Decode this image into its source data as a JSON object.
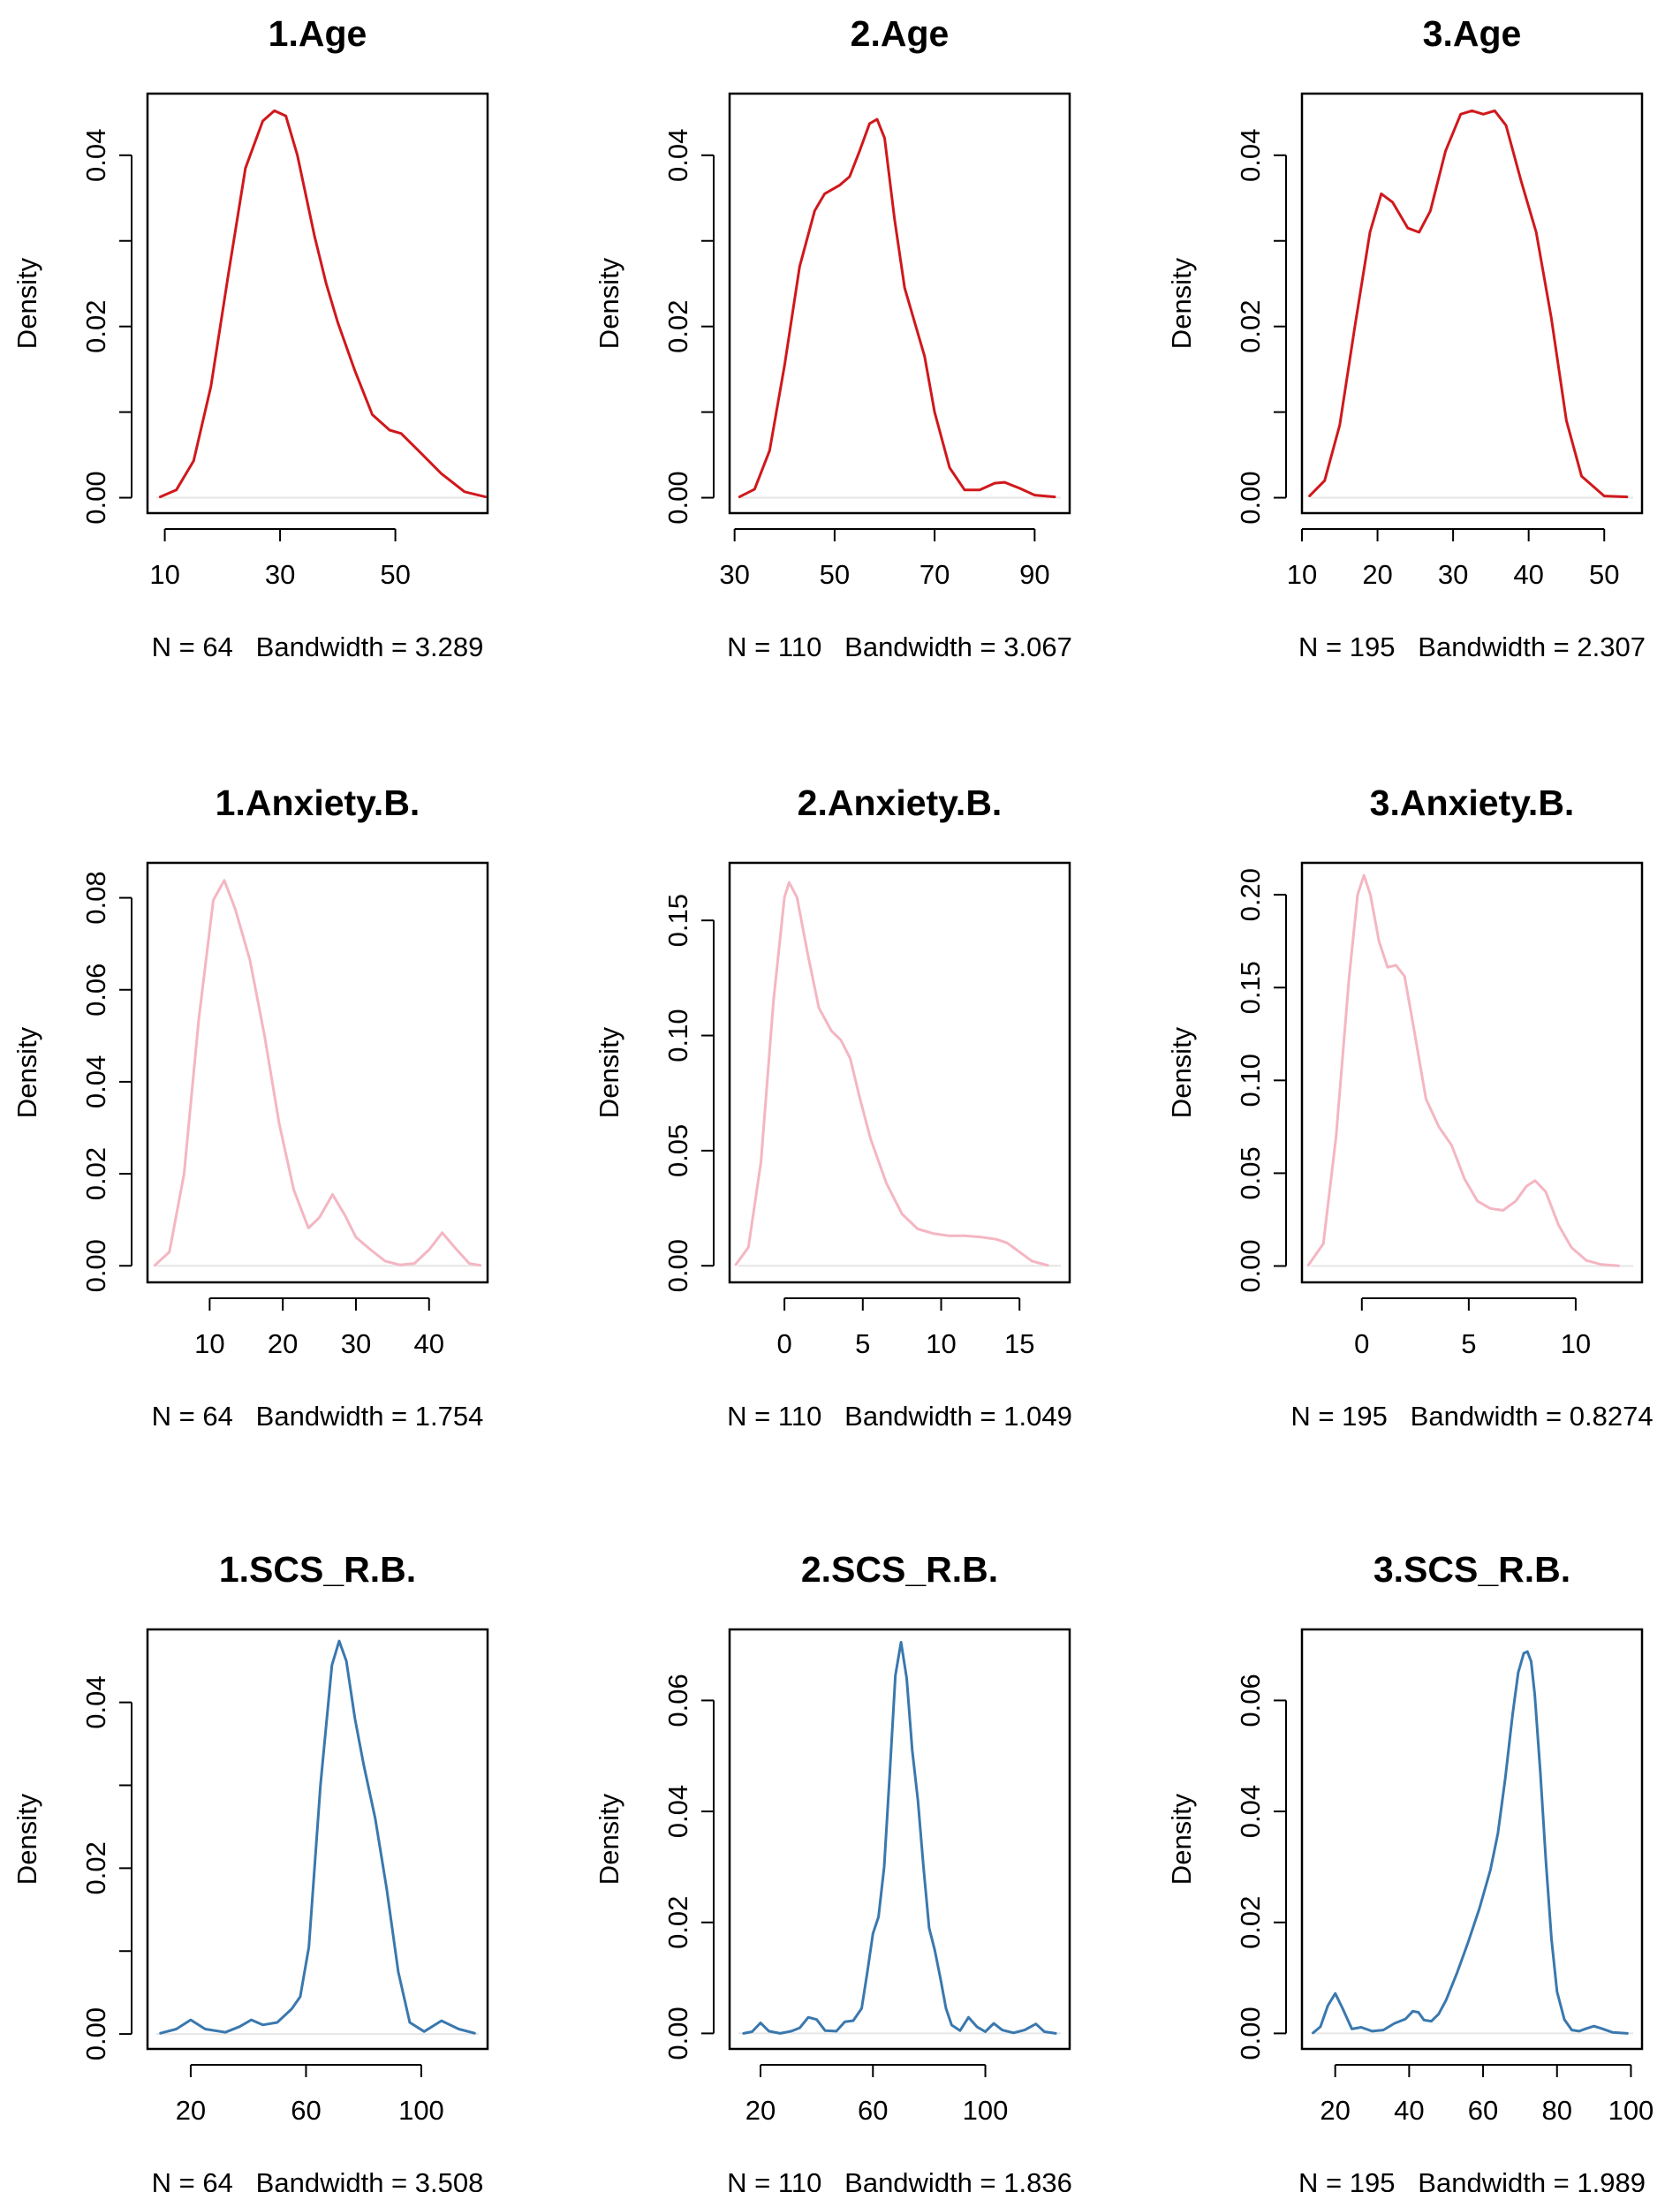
{
  "figure": {
    "ylabel": "Density",
    "colors": {
      "age": "#d0181c",
      "anxiety": "#f4b6c2",
      "scs": "#3a78ae",
      "axis": "#000000",
      "baseline": "#e6e6e6"
    }
  },
  "chart_data": [
    {
      "type": "line",
      "title": "1.Age",
      "xlabel": "N = 64   Bandwidth = 3.289",
      "ylabel": "Density",
      "color": "#d0181c",
      "xlim": [
        7,
        66
      ],
      "ylim": [
        -0.0018,
        0.0472
      ],
      "xticks": [
        10,
        30,
        50
      ],
      "xtick_labels": [
        "10",
        "30",
        "50"
      ],
      "yticks": [
        0,
        0.01,
        0.02,
        0.03,
        0.04
      ],
      "ytick_labels": [
        "0.00",
        "",
        "0.02",
        "",
        "0.04"
      ],
      "x": [
        9.2,
        12,
        15,
        18,
        21,
        24,
        27,
        29,
        31,
        33,
        36,
        38,
        40,
        43,
        46,
        49,
        51,
        54,
        58,
        62,
        65.6
      ],
      "y": [
        0.0001,
        0.0009,
        0.0043,
        0.013,
        0.026,
        0.0385,
        0.044,
        0.0452,
        0.0446,
        0.04,
        0.0305,
        0.025,
        0.0205,
        0.0148,
        0.0097,
        0.0079,
        0.0075,
        0.0055,
        0.0028,
        0.0007,
        0.0001
      ]
    },
    {
      "type": "line",
      "title": "2.Age",
      "xlabel": "N = 110   Bandwidth = 3.067",
      "ylabel": "Density",
      "color": "#d0181c",
      "xlim": [
        29,
        97
      ],
      "ylim": [
        -0.0018,
        0.0472
      ],
      "xticks": [
        30,
        50,
        70,
        90
      ],
      "xtick_labels": [
        "30",
        "50",
        "70",
        "90"
      ],
      "yticks": [
        0,
        0.01,
        0.02,
        0.03,
        0.04
      ],
      "ytick_labels": [
        "0.00",
        "",
        "0.02",
        "",
        "0.04"
      ],
      "x": [
        31,
        34,
        37,
        40,
        43,
        46,
        48,
        51,
        53,
        55,
        57,
        58.5,
        60,
        62,
        64,
        66,
        68,
        70,
        73,
        76,
        79,
        82,
        84,
        87,
        90,
        94
      ],
      "y": [
        0.0001,
        0.001,
        0.0055,
        0.0155,
        0.027,
        0.0335,
        0.0355,
        0.0365,
        0.0375,
        0.0405,
        0.0437,
        0.0442,
        0.042,
        0.0325,
        0.0245,
        0.0205,
        0.0165,
        0.01,
        0.0035,
        0.0009,
        0.0009,
        0.0017,
        0.0018,
        0.0011,
        0.0003,
        0.0001
      ]
    },
    {
      "type": "line",
      "title": "3.Age",
      "xlabel": "N = 195   Bandwidth = 2.307",
      "ylabel": "Density",
      "color": "#d0181c",
      "xlim": [
        10,
        55
      ],
      "ylim": [
        -0.0018,
        0.0472
      ],
      "xticks": [
        10,
        20,
        30,
        40,
        50
      ],
      "xtick_labels": [
        "10",
        "20",
        "30",
        "40",
        "50"
      ],
      "yticks": [
        0,
        0.01,
        0.02,
        0.03,
        0.04
      ],
      "ytick_labels": [
        "0.00",
        "",
        "0.02",
        "",
        "0.04"
      ],
      "x": [
        11,
        13,
        15,
        17,
        19,
        20.5,
        22,
        24,
        25.5,
        27,
        29,
        31,
        32.5,
        34,
        35.5,
        37,
        39,
        41,
        43,
        45,
        47,
        50,
        53
      ],
      "y": [
        0.0002,
        0.002,
        0.0085,
        0.02,
        0.031,
        0.0355,
        0.0345,
        0.0315,
        0.031,
        0.0335,
        0.0405,
        0.0448,
        0.0452,
        0.0448,
        0.0452,
        0.0435,
        0.037,
        0.031,
        0.021,
        0.009,
        0.0025,
        0.0002,
        0.0001
      ]
    },
    {
      "type": "line",
      "title": "1.Anxiety.B.",
      "xlabel": "N = 64   Bandwidth = 1.754",
      "ylabel": "Density",
      "color": "#f4b6c2",
      "xlim": [
        1.5,
        48
      ],
      "ylim": [
        -0.0036,
        0.0876
      ],
      "xticks": [
        10,
        20,
        30,
        40
      ],
      "xtick_labels": [
        "10",
        "20",
        "30",
        "40"
      ],
      "yticks": [
        0,
        0.02,
        0.04,
        0.06,
        0.08
      ],
      "ytick_labels": [
        "0.00",
        "0.02",
        "0.04",
        "0.06",
        "0.08"
      ],
      "x": [
        2.5,
        4.5,
        6.5,
        8.5,
        10.5,
        12,
        13.5,
        15.5,
        17.5,
        19.5,
        21.5,
        23.5,
        25,
        26.8,
        28.5,
        30,
        32,
        34,
        36,
        38,
        40,
        41.8,
        43.5,
        45.5,
        47
      ],
      "y": [
        0.0001,
        0.003,
        0.02,
        0.0535,
        0.0795,
        0.0838,
        0.0775,
        0.0665,
        0.05,
        0.031,
        0.0165,
        0.0082,
        0.0105,
        0.0155,
        0.011,
        0.0062,
        0.0035,
        0.001,
        0.0002,
        0.0005,
        0.0035,
        0.0072,
        0.004,
        0.0005,
        0.0001
      ]
    },
    {
      "type": "line",
      "title": "2.Anxiety.B.",
      "xlabel": "N = 110   Bandwidth = 1.049",
      "ylabel": "Density",
      "color": "#f4b6c2",
      "xlim": [
        -3.5,
        18.2
      ],
      "ylim": [
        -0.0072,
        0.175
      ],
      "xticks": [
        0,
        5,
        10,
        15
      ],
      "xtick_labels": [
        "0",
        "5",
        "10",
        "15"
      ],
      "yticks": [
        0,
        0.05,
        0.1,
        0.15
      ],
      "ytick_labels": [
        "0.00",
        "0.05",
        "0.10",
        "0.15"
      ],
      "x": [
        -3.1,
        -2.3,
        -1.5,
        -0.7,
        0,
        0.3,
        0.8,
        1.5,
        2.2,
        3,
        3.6,
        4.2,
        4.8,
        5.5,
        6.5,
        7.5,
        8.5,
        9.5,
        10.5,
        11.5,
        12.5,
        13.5,
        14.2,
        15,
        15.8,
        16.8
      ],
      "y": [
        0.0005,
        0.008,
        0.045,
        0.115,
        0.16,
        0.1665,
        0.16,
        0.135,
        0.112,
        0.102,
        0.098,
        0.09,
        0.073,
        0.055,
        0.036,
        0.0225,
        0.016,
        0.014,
        0.013,
        0.013,
        0.0125,
        0.0115,
        0.01,
        0.006,
        0.002,
        0.0002
      ]
    },
    {
      "type": "line",
      "title": "3.Anxiety.B.",
      "xlabel": "N = 195   Bandwidth = 0.8274",
      "ylabel": "Density",
      "color": "#f4b6c2",
      "xlim": [
        -2.8,
        13.1
      ],
      "ylim": [
        -0.0088,
        0.2172
      ],
      "xticks": [
        0,
        5,
        10
      ],
      "xtick_labels": [
        "0",
        "5",
        "10"
      ],
      "yticks": [
        0,
        0.05,
        0.1,
        0.15,
        0.2
      ],
      "ytick_labels": [
        "0.00",
        "0.05",
        "0.10",
        "0.15",
        "0.20"
      ],
      "x": [
        -2.5,
        -1.8,
        -1.2,
        -0.6,
        -0.2,
        0.1,
        0.4,
        0.8,
        1.2,
        1.6,
        2,
        2.4,
        3,
        3.6,
        4.2,
        4.8,
        5.4,
        6,
        6.6,
        7.2,
        7.7,
        8.1,
        8.6,
        9.2,
        9.8,
        10.5,
        11.2,
        12
      ],
      "y": [
        0.0005,
        0.012,
        0.07,
        0.155,
        0.2,
        0.2105,
        0.2,
        0.175,
        0.161,
        0.162,
        0.156,
        0.13,
        0.09,
        0.075,
        0.065,
        0.047,
        0.035,
        0.031,
        0.03,
        0.035,
        0.043,
        0.046,
        0.04,
        0.022,
        0.01,
        0.003,
        0.0008,
        0.0001
      ]
    },
    {
      "type": "line",
      "title": "1.SCS_R.B.",
      "xlabel": "N = 64   Bandwidth = 3.508",
      "ylabel": "Density",
      "color": "#3a78ae",
      "xlim": [
        5,
        123
      ],
      "ylim": [
        -0.0018,
        0.0488
      ],
      "xticks": [
        20,
        60,
        100
      ],
      "xtick_labels": [
        "20",
        "60",
        "100"
      ],
      "yticks": [
        0,
        0.01,
        0.02,
        0.03,
        0.04
      ],
      "ytick_labels": [
        "0.00",
        "",
        "0.02",
        "",
        "0.04"
      ],
      "x": [
        9.5,
        15,
        20,
        25,
        32,
        37,
        41,
        45,
        50,
        55,
        58,
        61,
        65,
        69,
        71.5,
        74,
        77,
        80,
        84,
        88,
        92,
        96,
        101,
        107,
        113,
        118.5
      ],
      "y": [
        0.0001,
        0.0006,
        0.0017,
        0.0006,
        0.0002,
        0.0009,
        0.0017,
        0.0011,
        0.0014,
        0.003,
        0.0045,
        0.0105,
        0.03,
        0.0445,
        0.0474,
        0.045,
        0.038,
        0.0325,
        0.026,
        0.0175,
        0.0075,
        0.0014,
        0.0003,
        0.0016,
        0.0006,
        0.0001
      ]
    },
    {
      "type": "line",
      "title": "2.SCS_R.B.",
      "xlabel": "N = 110   Bandwidth = 1.836",
      "ylabel": "Density",
      "color": "#3a78ae",
      "xlim": [
        9,
        130
      ],
      "ylim": [
        -0.0028,
        0.0728
      ],
      "xticks": [
        20,
        60,
        100
      ],
      "xtick_labels": [
        "20",
        "60",
        "100"
      ],
      "yticks": [
        0,
        0.02,
        0.04,
        0.06
      ],
      "ytick_labels": [
        "0.00",
        "0.02",
        "0.04",
        "0.06"
      ],
      "x": [
        14,
        17,
        20,
        23,
        27,
        31,
        34,
        37,
        40,
        43,
        47,
        50,
        53,
        56,
        58,
        60,
        62,
        64,
        66,
        68,
        70,
        72,
        74,
        76,
        78,
        80,
        82,
        84,
        86,
        88,
        91,
        94,
        97,
        100,
        103,
        106,
        110,
        114,
        118,
        121,
        125
      ],
      "y": [
        0,
        0.0003,
        0.0019,
        0.0004,
        0,
        0.0004,
        0.001,
        0.0029,
        0.0025,
        0.0005,
        0.0004,
        0.0021,
        0.0023,
        0.0045,
        0.011,
        0.018,
        0.021,
        0.03,
        0.047,
        0.0645,
        0.0705,
        0.064,
        0.051,
        0.042,
        0.03,
        0.019,
        0.015,
        0.01,
        0.0045,
        0.0015,
        0.0005,
        0.0029,
        0.0012,
        0.0003,
        0.0018,
        0.0006,
        0.0001,
        0.0006,
        0.0017,
        0.0003,
        0
      ]
    },
    {
      "type": "line",
      "title": "3.SCS_R.B.",
      "xlabel": "N = 195   Bandwidth = 1.989",
      "ylabel": "Density",
      "color": "#3a78ae",
      "xlim": [
        11,
        103
      ],
      "ylim": [
        -0.0028,
        0.0728
      ],
      "xticks": [
        20,
        40,
        60,
        80,
        100
      ],
      "xtick_labels": [
        "20",
        "40",
        "60",
        "80",
        "100"
      ],
      "yticks": [
        0,
        0.02,
        0.04,
        0.06
      ],
      "ytick_labels": [
        "0.00",
        "0.02",
        "0.04",
        "0.06"
      ],
      "x": [
        14,
        16,
        18,
        20,
        22,
        24.5,
        27,
        30,
        33,
        36,
        39,
        41,
        42.5,
        44,
        46,
        48,
        50,
        53,
        56,
        59,
        62,
        64,
        66,
        68,
        69.5,
        71,
        72,
        73,
        74,
        75.5,
        77,
        78.5,
        80,
        82,
        84,
        86,
        88,
        90,
        92,
        95,
        99
      ],
      "y": [
        0.0001,
        0.0012,
        0.005,
        0.0072,
        0.0045,
        0.0008,
        0.0011,
        0.0004,
        0.0006,
        0.0018,
        0.0026,
        0.004,
        0.0038,
        0.0024,
        0.0022,
        0.0035,
        0.006,
        0.011,
        0.0165,
        0.0225,
        0.0295,
        0.036,
        0.046,
        0.0575,
        0.065,
        0.0685,
        0.0688,
        0.067,
        0.061,
        0.047,
        0.031,
        0.017,
        0.0075,
        0.0025,
        0.0006,
        0.0004,
        0.0009,
        0.0013,
        0.0009,
        0.0002,
        0
      ]
    }
  ]
}
